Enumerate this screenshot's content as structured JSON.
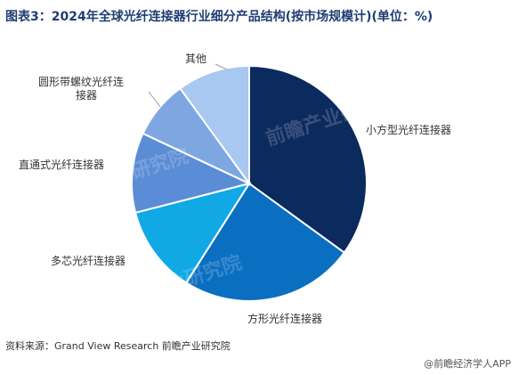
{
  "title": "图表3：2024年全球光纤连接器行业细分产品结构(按市场规模计)(单位：%)",
  "chart_data": {
    "type": "pie",
    "slices": [
      {
        "label": "小方型光纤连接器",
        "value": 35,
        "color": "#0b2a5e"
      },
      {
        "label": "方形光纤连接器",
        "value": 24,
        "color": "#0b6fc1"
      },
      {
        "label": "多芯光纤连接器",
        "value": 12,
        "color": "#10a9e6"
      },
      {
        "label": "直通式光纤连接器",
        "value": 11,
        "color": "#5b8dd6"
      },
      {
        "label": "圆形带螺纹光纤连接器",
        "value": 8,
        "color": "#7ea7e1"
      },
      {
        "label": "其他",
        "value": 10,
        "color": "#a8c7f1"
      }
    ]
  },
  "labels": {
    "small_square": "小方型光纤连接器",
    "square": "方形光纤连接器",
    "multicore": "多芯光纤连接器",
    "straight": "直通式光纤连接器",
    "threaded_line1": "圆形带螺纹光纤连",
    "threaded_line2": "接器",
    "other": "其他"
  },
  "watermark_text": "前瞻产业研究院",
  "source": "资料来源：Grand View Research 前瞻产业研究院",
  "brand": "@前瞻经济学人APP"
}
